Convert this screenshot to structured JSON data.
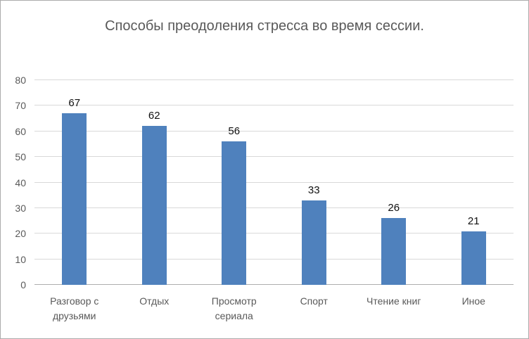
{
  "title": "Способы преодоления стресса во время сессии.",
  "colors": {
    "bar": "#4f81bd",
    "gridline": "#d9d9d9",
    "axis_line": "#adadad",
    "text_gray": "#595959",
    "data_label": "#111111",
    "frame_border": "#ababab",
    "background": "#ffffff"
  },
  "chart_data": {
    "type": "bar",
    "title": "Способы преодоления стресса во время сессии.",
    "categories": [
      "Разговор с друзьями",
      "Отдых",
      "Просмотр сериала",
      "Спорт",
      "Чтение книг",
      "Иное"
    ],
    "values": [
      67,
      62,
      56,
      33,
      26,
      21
    ],
    "xlabel": "",
    "ylabel": "",
    "ylim": [
      0,
      80
    ],
    "yticks": [
      0,
      10,
      20,
      30,
      40,
      50,
      60,
      70,
      80
    ],
    "grid": true,
    "legend": "none",
    "data_labels": true
  }
}
